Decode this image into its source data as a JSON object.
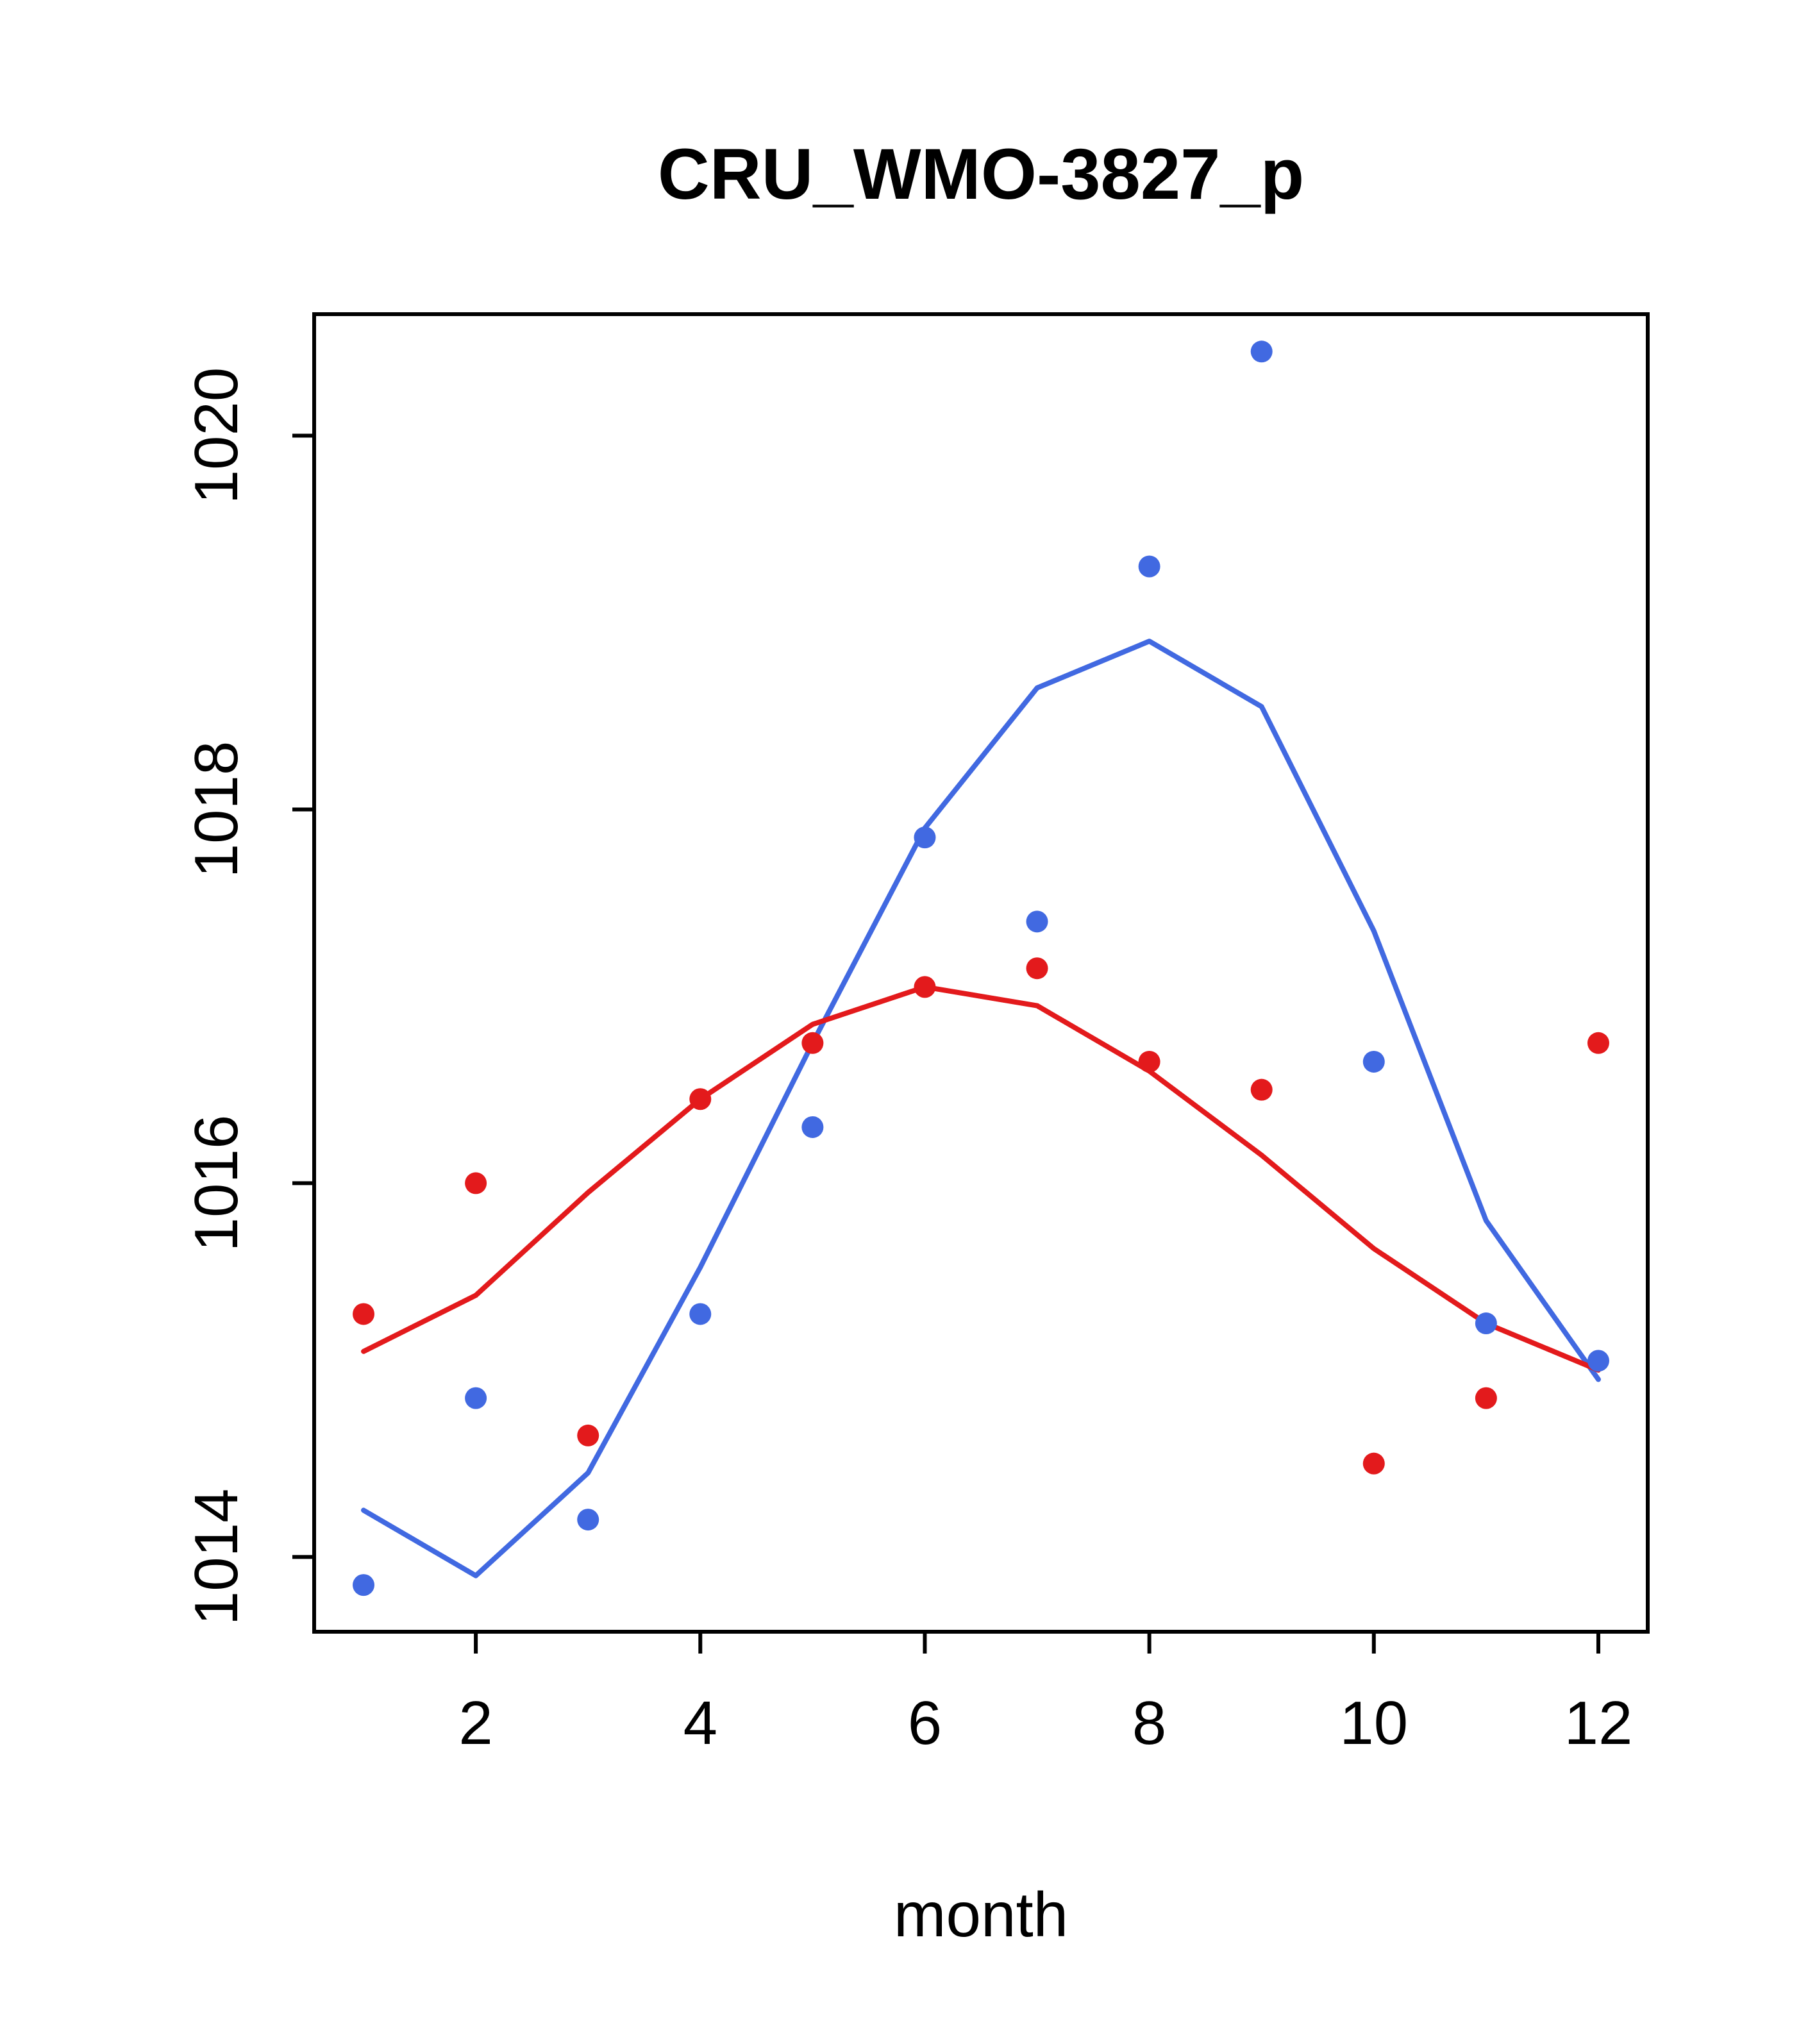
{
  "chart_data": {
    "type": "scatter",
    "title": "CRU_WMO-3827_p",
    "xlabel": "month",
    "ylabel": "",
    "x": [
      1,
      2,
      3,
      4,
      5,
      6,
      7,
      8,
      9,
      10,
      11,
      12
    ],
    "xlim": [
      0.56,
      12.44
    ],
    "ylim": [
      1013.6,
      1020.65
    ],
    "xticks": [
      2,
      4,
      6,
      8,
      10,
      12
    ],
    "yticks": [
      1014,
      1016,
      1018,
      1020
    ],
    "grid": false,
    "legend": "none",
    "colors": {
      "series_blue": "#4169e1",
      "series_red": "#e31a1c",
      "axis": "#000000",
      "background": "#ffffff"
    },
    "series": [
      {
        "name": "blue-points",
        "kind": "points",
        "color": "#4169e1",
        "values": [
          1013.85,
          1014.85,
          1014.2,
          1015.3,
          1016.3,
          1017.85,
          1017.4,
          1019.3,
          1020.45,
          1016.65,
          1015.25,
          1015.05
        ]
      },
      {
        "name": "blue-smoothed-line",
        "kind": "line",
        "color": "#4169e1",
        "values": [
          1014.25,
          1013.9,
          1014.45,
          1015.55,
          1016.75,
          1017.9,
          1018.65,
          1018.9,
          1018.55,
          1017.35,
          1015.8,
          1014.95
        ]
      },
      {
        "name": "red-points",
        "kind": "points",
        "color": "#e31a1c",
        "values": [
          1015.3,
          1016.0,
          1014.65,
          1016.45,
          1016.75,
          1017.05,
          1017.15,
          1016.65,
          1016.5,
          1014.5,
          1014.85,
          1016.75
        ]
      },
      {
        "name": "red-smoothed-line",
        "kind": "line",
        "color": "#e31a1c",
        "values": [
          1015.1,
          1015.4,
          1015.95,
          1016.45,
          1016.85,
          1017.05,
          1016.95,
          1016.6,
          1016.15,
          1015.65,
          1015.25,
          1015.0
        ]
      }
    ]
  }
}
